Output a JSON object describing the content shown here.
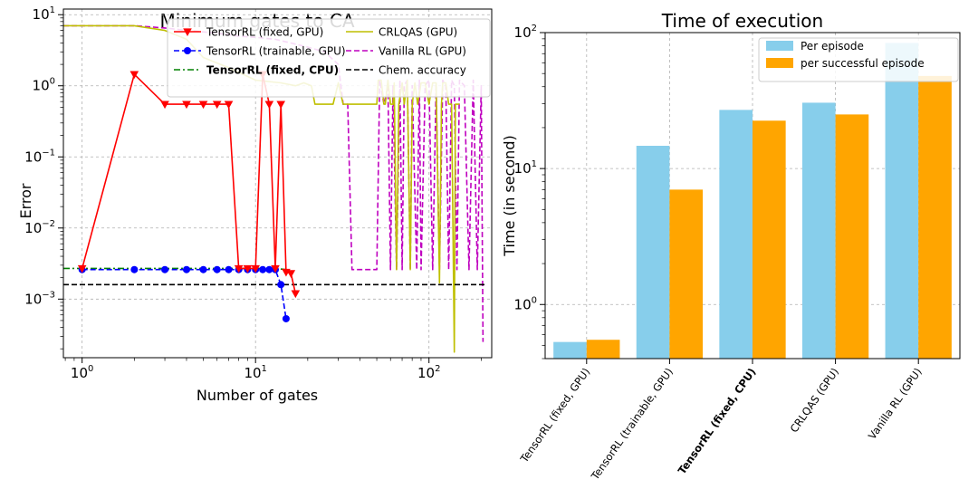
{
  "chart_data": [
    {
      "type": "line",
      "title": "Minimum gates to CA",
      "xlabel": "Number of gates",
      "ylabel": "Error",
      "xscale": "log",
      "yscale": "log",
      "xlim": [
        0.78,
        230
      ],
      "ylim": [
        0.00015,
        12
      ],
      "xticks": [
        {
          "v": 1,
          "base": "10",
          "exp": "0"
        },
        {
          "v": 10,
          "base": "10",
          "exp": "1"
        },
        {
          "v": 100,
          "base": "10",
          "exp": "2"
        }
      ],
      "yticks": [
        {
          "v": 0.001,
          "base": "10",
          "exp": "−3"
        },
        {
          "v": 0.01,
          "base": "10",
          "exp": "−2"
        },
        {
          "v": 0.1,
          "base": "10",
          "exp": "−1"
        },
        {
          "v": 1,
          "base": "10",
          "exp": "0"
        },
        {
          "v": 10,
          "base": "10",
          "exp": "1"
        }
      ],
      "grid": true,
      "legend_position": "top-right",
      "series": [
        {
          "name": "TensorRL (fixed, GPU)",
          "color": "#ff0000",
          "style": "solid",
          "marker": "triangle-down",
          "bold": false,
          "x": [
            1,
            2,
            3,
            4,
            5,
            6,
            7,
            8,
            9,
            10,
            11,
            12,
            13,
            14,
            15,
            16,
            17
          ],
          "y": [
            0.0027,
            1.45,
            0.55,
            0.55,
            0.55,
            0.55,
            0.55,
            0.0027,
            0.0027,
            0.0027,
            1.45,
            0.55,
            0.0027,
            0.55,
            0.0024,
            0.0023,
            0.0012
          ]
        },
        {
          "name": "TensorRL (trainable, GPU)",
          "color": "#0000ff",
          "style": "dashed",
          "marker": "circle",
          "bold": false,
          "x": [
            1,
            2,
            3,
            4,
            5,
            6,
            7,
            8,
            9,
            10,
            11,
            12,
            13,
            14,
            15
          ],
          "y": [
            0.0026,
            0.0026,
            0.0026,
            0.0026,
            0.0026,
            0.0026,
            0.0026,
            0.0026,
            0.0026,
            0.0026,
            0.0026,
            0.0026,
            0.0026,
            0.0016,
            0.00053
          ]
        },
        {
          "name": "TensorRL (fixed, CPU)",
          "color": "#008000",
          "style": "dashdot",
          "marker": "none",
          "bold": true,
          "x": [
            0.78,
            2,
            5,
            10,
            13,
            15
          ],
          "y": [
            0.0027,
            0.0027,
            0.0027,
            0.0027,
            0.0027,
            0.0026
          ]
        },
        {
          "name": "CRLQAS (GPU)",
          "color": "#bfbf00",
          "style": "solid",
          "marker": "none",
          "bold": false,
          "x": [
            0.78,
            2,
            3,
            4,
            5,
            7,
            10,
            14,
            17,
            19,
            21,
            22,
            26,
            28,
            30,
            32,
            33,
            35,
            40,
            50,
            51,
            53,
            55,
            56,
            58,
            60,
            62,
            63,
            65,
            67,
            70,
            72,
            75,
            78,
            80,
            83,
            86,
            90,
            95,
            100,
            105,
            110,
            115,
            118,
            120,
            125,
            130,
            135,
            140,
            142,
            145,
            150
          ],
          "y": [
            7.0,
            7.0,
            6.0,
            4.5,
            2.5,
            1.8,
            1.2,
            1.1,
            1.0,
            1.1,
            1.0,
            0.55,
            0.55,
            0.55,
            1.1,
            0.55,
            0.55,
            0.55,
            0.55,
            0.55,
            1.2,
            1.2,
            0.55,
            0.55,
            1.2,
            0.55,
            0.55,
            1.1,
            0.0026,
            0.55,
            1.1,
            0.55,
            1.2,
            0.0026,
            0.55,
            1.1,
            0.55,
            1.1,
            1.1,
            0.55,
            1.1,
            1.1,
            0.0017,
            0.55,
            1.1,
            1.1,
            0.55,
            0.55,
            0.00018,
            0.55,
            0.55,
            0.55
          ]
        },
        {
          "name": "Vanilla RL (GPU)",
          "color": "#bf00bf",
          "style": "dashed",
          "marker": "none",
          "bold": false,
          "x": [
            0.78,
            2,
            3,
            4,
            6,
            8,
            10,
            13,
            16,
            20,
            25,
            30,
            32,
            34,
            36,
            40,
            45,
            50,
            52,
            55,
            58,
            60,
            62,
            65,
            68,
            70,
            72,
            75,
            78,
            80,
            85,
            88,
            90,
            95,
            100,
            105,
            110,
            115,
            120,
            125,
            130,
            135,
            140,
            145,
            150,
            160,
            170,
            180,
            190,
            200,
            205
          ],
          "y": [
            7.0,
            7.0,
            6.5,
            6.0,
            5.5,
            5.0,
            4.8,
            4.5,
            4.0,
            3.5,
            3.0,
            2.0,
            0.55,
            0.55,
            0.0026,
            0.0026,
            0.0026,
            0.0026,
            1.2,
            0.55,
            1.0,
            0.0026,
            1.0,
            0.0026,
            1.2,
            0.0026,
            1.0,
            1.2,
            0.0026,
            1.0,
            0.0026,
            1.2,
            0.0026,
            1.0,
            1.2,
            0.0026,
            1.0,
            0.0026,
            1.2,
            1.0,
            0.0026,
            1.2,
            1.0,
            0.0026,
            1.2,
            1.0,
            0.0026,
            1.2,
            0.0026,
            1.0,
            0.00025
          ]
        },
        {
          "name": "Chem. accuracy",
          "color": "#000000",
          "style": "dashed",
          "marker": "none",
          "bold": false,
          "x": [
            0.78,
            215
          ],
          "y": [
            0.0016,
            0.0016
          ]
        }
      ]
    },
    {
      "type": "bar",
      "title": "Time of execution",
      "xlabel": "",
      "ylabel": "Time (in second)",
      "yscale": "log",
      "ylim": [
        0.4,
        100
      ],
      "yticks": [
        {
          "v": 1,
          "base": "10",
          "exp": "0"
        },
        {
          "v": 10,
          "base": "10",
          "exp": "1"
        },
        {
          "v": 100,
          "base": "10",
          "exp": "2"
        }
      ],
      "grid": true,
      "legend_position": "top-right",
      "categories": [
        {
          "label": "TensorRL (fixed, GPU)",
          "bold": false
        },
        {
          "label": "TensorRL (trainable, GPU)",
          "bold": false
        },
        {
          "label": "TensorRL (fixed, CPU)",
          "bold": true
        },
        {
          "label": "CRLQAS (GPU)",
          "bold": false
        },
        {
          "label": "Vanilla RL (GPU)",
          "bold": false
        }
      ],
      "series": [
        {
          "name": "Per episode",
          "color": "#87ceeb",
          "values": [
            0.53,
            14.7,
            27.0,
            30.5,
            84.0
          ]
        },
        {
          "name": "per successful episode",
          "color": "#ffa500",
          "values": [
            0.55,
            7.0,
            22.5,
            25.0,
            48.0
          ]
        }
      ]
    }
  ]
}
